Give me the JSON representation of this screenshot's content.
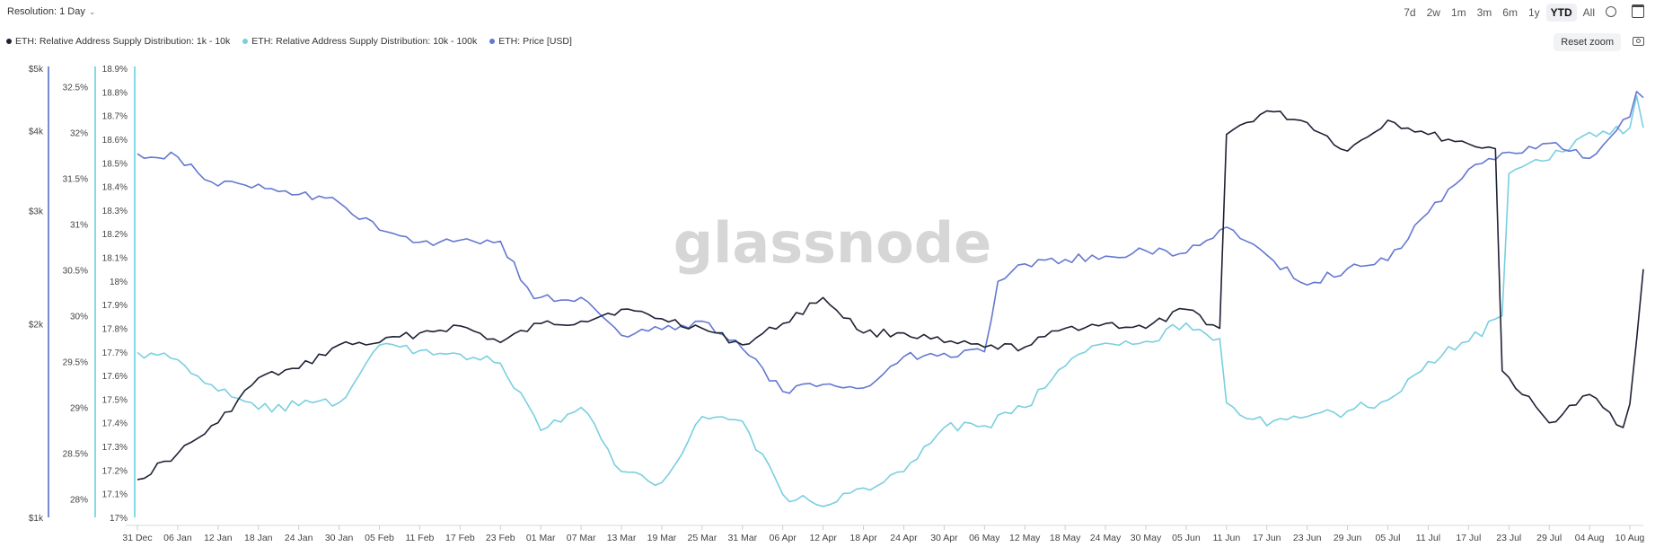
{
  "toolbar": {
    "resolution_label": "Resolution: 1 Day",
    "ranges": [
      "7d",
      "2w",
      "1m",
      "3m",
      "6m",
      "1y",
      "YTD",
      "All"
    ],
    "active_range": "YTD",
    "reset_zoom_label": "Reset zoom"
  },
  "watermark": "glassnode",
  "colors": {
    "series_1k_10k": "#1e2235",
    "series_10k_100k": "#79cfe0",
    "series_price": "#6478d2",
    "axis_price": "#4a69bd",
    "axis_10k_100k": "#5ccfd8"
  },
  "chart_data": {
    "type": "line",
    "x_start": "31 Dec",
    "x_end": "12 Aug",
    "x_tick_labels": [
      "31 Dec",
      "06 Jan",
      "12 Jan",
      "18 Jan",
      "24 Jan",
      "30 Jan",
      "05 Feb",
      "11 Feb",
      "17 Feb",
      "23 Feb",
      "01 Mar",
      "07 Mar",
      "13 Mar",
      "19 Mar",
      "25 Mar",
      "31 Mar",
      "06 Apr",
      "12 Apr",
      "18 Apr",
      "24 Apr",
      "30 Apr",
      "06 May",
      "12 May",
      "18 May",
      "24 May",
      "30 May",
      "05 Jun",
      "11 Jun",
      "17 Jun",
      "23 Jun",
      "29 Jun",
      "05 Jul",
      "11 Jul",
      "17 Jul",
      "23 Jul",
      "29 Jul",
      "04 Aug",
      "10 Aug"
    ],
    "axes": {
      "price": {
        "ticks": [
          "$1k",
          "$2k",
          "$3k",
          "$4k",
          "$5k"
        ],
        "scale": "log",
        "range": [
          1000,
          5000
        ]
      },
      "pct_10k_100k": {
        "ticks": [
          "28%",
          "28.5%",
          "29%",
          "29.5%",
          "30%",
          "30.5%",
          "31%",
          "31.5%",
          "32%",
          "32.5%"
        ],
        "range": [
          27.8,
          32.7
        ]
      },
      "pct_1k_10k": {
        "ticks": [
          "17%",
          "17.1%",
          "17.2%",
          "17.3%",
          "17.4%",
          "17.5%",
          "17.6%",
          "17.7%",
          "17.8%",
          "17.9%",
          "18%",
          "18.1%",
          "18.2%",
          "18.3%",
          "18.4%",
          "18.5%",
          "18.6%",
          "18.7%",
          "18.8%",
          "18.9%"
        ],
        "range": [
          17.0,
          18.9
        ]
      }
    },
    "legend_position": "top-left",
    "grid": false,
    "series": [
      {
        "name": "ETH: Relative Address Supply Distribution: 1k - 10k",
        "axis": "pct_1k_10k",
        "keypoints": [
          [
            "31 Dec",
            17.16
          ],
          [
            "06 Jan",
            17.27
          ],
          [
            "12 Jan",
            17.4
          ],
          [
            "18 Jan",
            17.59
          ],
          [
            "24 Jan",
            17.63
          ],
          [
            "30 Jan",
            17.73
          ],
          [
            "05 Feb",
            17.74
          ],
          [
            "11 Feb",
            17.78
          ],
          [
            "17 Feb",
            17.81
          ],
          [
            "23 Feb",
            17.74
          ],
          [
            "01 Mar",
            17.82
          ],
          [
            "07 Mar",
            17.83
          ],
          [
            "13 Mar",
            17.88
          ],
          [
            "19 Mar",
            17.84
          ],
          [
            "25 Mar",
            17.8
          ],
          [
            "31 Mar",
            17.73
          ],
          [
            "06 Apr",
            17.82
          ],
          [
            "12 Apr",
            17.93
          ],
          [
            "18 Apr",
            17.78
          ],
          [
            "24 Apr",
            17.78
          ],
          [
            "30 Apr",
            17.74
          ],
          [
            "06 May",
            17.72
          ],
          [
            "12 May",
            17.72
          ],
          [
            "18 May",
            17.8
          ],
          [
            "24 May",
            17.82
          ],
          [
            "30 May",
            17.8
          ],
          [
            "05 Jun",
            17.88
          ],
          [
            "10 Jun",
            17.8
          ],
          [
            "11 Jun",
            18.62
          ],
          [
            "17 Jun",
            18.72
          ],
          [
            "23 Jun",
            18.67
          ],
          [
            "29 Jun",
            18.55
          ],
          [
            "05 Jul",
            18.68
          ],
          [
            "11 Jul",
            18.62
          ],
          [
            "17 Jul",
            18.58
          ],
          [
            "21 Jul",
            18.56
          ],
          [
            "22 Jul",
            17.62
          ],
          [
            "29 Jul",
            17.4
          ],
          [
            "04 Aug",
            17.52
          ],
          [
            "09 Aug",
            17.38
          ],
          [
            "10 Aug",
            17.48
          ],
          [
            "12 Aug",
            18.05
          ]
        ]
      },
      {
        "name": "ETH: Relative Address Supply Distribution: 10k - 100k",
        "axis": "pct_10k_100k",
        "keypoints": [
          [
            "31 Dec",
            29.6
          ],
          [
            "06 Jan",
            29.52
          ],
          [
            "12 Jan",
            29.18
          ],
          [
            "18 Jan",
            28.98
          ],
          [
            "24 Jan",
            29.02
          ],
          [
            "30 Jan",
            29.05
          ],
          [
            "05 Feb",
            29.68
          ],
          [
            "11 Feb",
            29.62
          ],
          [
            "17 Feb",
            29.58
          ],
          [
            "23 Feb",
            29.48
          ],
          [
            "01 Mar",
            28.75
          ],
          [
            "07 Mar",
            29.0
          ],
          [
            "13 Mar",
            28.3
          ],
          [
            "19 Mar",
            28.18
          ],
          [
            "25 Mar",
            28.9
          ],
          [
            "31 Mar",
            28.85
          ],
          [
            "06 Apr",
            28.05
          ],
          [
            "12 Apr",
            27.92
          ],
          [
            "18 Apr",
            28.12
          ],
          [
            "24 Apr",
            28.3
          ],
          [
            "30 Apr",
            28.78
          ],
          [
            "06 May",
            28.8
          ],
          [
            "12 May",
            29.0
          ],
          [
            "18 May",
            29.45
          ],
          [
            "24 May",
            29.7
          ],
          [
            "30 May",
            29.72
          ],
          [
            "05 Jun",
            29.92
          ],
          [
            "10 Jun",
            29.75
          ],
          [
            "11 Jun",
            29.05
          ],
          [
            "17 Jun",
            28.8
          ],
          [
            "23 Jun",
            28.9
          ],
          [
            "29 Jun",
            28.96
          ],
          [
            "05 Jul",
            29.08
          ],
          [
            "11 Jul",
            29.5
          ],
          [
            "17 Jul",
            29.72
          ],
          [
            "22 Jul",
            30.0
          ],
          [
            "23 Jul",
            31.55
          ],
          [
            "29 Jul",
            31.7
          ],
          [
            "04 Aug",
            32.0
          ],
          [
            "10 Aug",
            32.05
          ],
          [
            "11 Aug",
            32.4
          ],
          [
            "12 Aug",
            32.05
          ]
        ]
      },
      {
        "name": "ETH: Price [USD]",
        "axis": "price",
        "keypoints": [
          [
            "31 Dec",
            3680
          ],
          [
            "06 Jan",
            3640
          ],
          [
            "12 Jan",
            3280
          ],
          [
            "18 Jan",
            3300
          ],
          [
            "24 Jan",
            3180
          ],
          [
            "30 Jan",
            3090
          ],
          [
            "05 Feb",
            2800
          ],
          [
            "11 Feb",
            2680
          ],
          [
            "17 Feb",
            2700
          ],
          [
            "23 Feb",
            2690
          ],
          [
            "28 Feb",
            2190
          ],
          [
            "01 Mar",
            2200
          ],
          [
            "07 Mar",
            2200
          ],
          [
            "13 Mar",
            1920
          ],
          [
            "19 Mar",
            1960
          ],
          [
            "25 Mar",
            2020
          ],
          [
            "31 Mar",
            1830
          ],
          [
            "06 Apr",
            1570
          ],
          [
            "12 Apr",
            1610
          ],
          [
            "18 Apr",
            1590
          ],
          [
            "24 Apr",
            1780
          ],
          [
            "30 Apr",
            1800
          ],
          [
            "06 May",
            1810
          ],
          [
            "08 May",
            2330
          ],
          [
            "12 May",
            2480
          ],
          [
            "18 May",
            2520
          ],
          [
            "24 May",
            2550
          ],
          [
            "30 May",
            2600
          ],
          [
            "05 Jun",
            2580
          ],
          [
            "11 Jun",
            2830
          ],
          [
            "17 Jun",
            2560
          ],
          [
            "23 Jun",
            2300
          ],
          [
            "29 Jun",
            2440
          ],
          [
            "05 Jul",
            2510
          ],
          [
            "11 Jul",
            2980
          ],
          [
            "17 Jul",
            3480
          ],
          [
            "23 Jul",
            3700
          ],
          [
            "29 Jul",
            3820
          ],
          [
            "04 Aug",
            3620
          ],
          [
            "10 Aug",
            4200
          ],
          [
            "11 Aug",
            4600
          ],
          [
            "12 Aug",
            4500
          ]
        ]
      }
    ]
  }
}
